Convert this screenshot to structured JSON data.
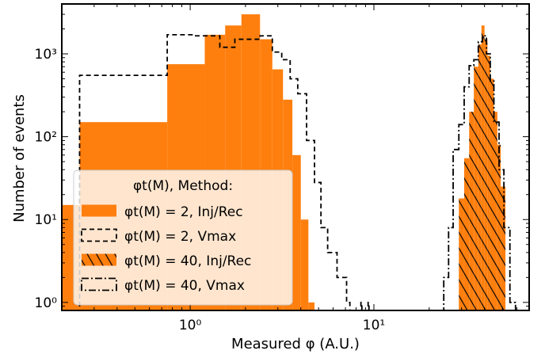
{
  "chart_data": {
    "type": "histogram",
    "xlabel": "Measured φ (A.U.)",
    "ylabel": "Number of events",
    "x_scale": "log",
    "y_scale": "log",
    "xlim": [
      0.2,
      70
    ],
    "ylim": [
      0.8,
      4000
    ],
    "x_ticks": [
      {
        "value": 1,
        "label": "10⁰"
      },
      {
        "value": 10,
        "label": "10¹"
      }
    ],
    "y_ticks": [
      {
        "value": 1,
        "label": "10⁰"
      },
      {
        "value": 10,
        "label": "10¹"
      },
      {
        "value": 100,
        "label": "10²"
      },
      {
        "value": 1000,
        "label": "10³"
      }
    ],
    "legend": {
      "title": "φt(M), Method:",
      "placement": "lower-left",
      "entries": [
        {
          "label": "φt(M) = 2, Inj/Rec",
          "style": "filled",
          "color": "#ff7f0e"
        },
        {
          "label": "φt(M) = 2, Vmax",
          "style": "dashed",
          "color": "#000000"
        },
        {
          "label": "φt(M) = 40, Inj/Rec",
          "style": "hatched",
          "color": "#ff7f0e"
        },
        {
          "label": "φt(M) = 40, Vmax",
          "style": "dashdot",
          "color": "#000000"
        }
      ]
    },
    "series": [
      {
        "label": "φt(M) = 2, Inj/Rec",
        "style": "filled",
        "bins": [
          [
            0.2,
            0.25,
            15
          ],
          [
            0.25,
            0.75,
            150
          ],
          [
            0.75,
            1.2,
            750
          ],
          [
            1.2,
            1.55,
            1700
          ],
          [
            1.55,
            1.9,
            2200
          ],
          [
            1.9,
            2.4,
            3000
          ],
          [
            2.4,
            2.8,
            1500
          ],
          [
            2.8,
            3.2,
            650
          ],
          [
            3.2,
            3.6,
            280
          ],
          [
            3.6,
            4.0,
            60
          ],
          [
            4.0,
            4.4,
            10
          ],
          [
            4.4,
            4.75,
            1
          ]
        ]
      },
      {
        "label": "φt(M) = 2, Vmax",
        "style": "dashed",
        "bins": [
          [
            0.25,
            0.75,
            550
          ],
          [
            0.75,
            1.05,
            1700
          ],
          [
            1.05,
            1.45,
            1650
          ],
          [
            1.45,
            1.75,
            1200
          ],
          [
            1.75,
            2.05,
            1500
          ],
          [
            2.05,
            2.4,
            1500
          ],
          [
            2.4,
            2.8,
            1650
          ],
          [
            2.8,
            3.15,
            1050
          ],
          [
            3.15,
            3.5,
            850
          ],
          [
            3.5,
            3.85,
            500
          ],
          [
            3.85,
            4.3,
            330
          ],
          [
            4.3,
            4.75,
            90
          ],
          [
            4.75,
            5.15,
            28
          ],
          [
            5.15,
            5.6,
            8
          ],
          [
            5.6,
            6.3,
            4
          ],
          [
            6.3,
            7.1,
            2
          ],
          [
            7.1,
            7.4,
            1
          ],
          [
            8.5,
            8.6,
            1
          ],
          [
            9.3,
            9.4,
            1
          ]
        ]
      },
      {
        "label": "φt(M) = 40, Inj/Rec",
        "style": "hatched",
        "bins": [
          [
            29,
            31,
            18
          ],
          [
            31,
            33,
            55
          ],
          [
            33,
            35,
            200
          ],
          [
            35,
            37,
            700
          ],
          [
            37,
            38.5,
            1300
          ],
          [
            38.5,
            40,
            2200
          ],
          [
            40,
            41.5,
            1500
          ],
          [
            41.5,
            43,
            950
          ],
          [
            43,
            45,
            500
          ],
          [
            45,
            47,
            200
          ],
          [
            47,
            49,
            80
          ],
          [
            49,
            52,
            25
          ]
        ]
      },
      {
        "label": "φt(M) = 40, Vmax",
        "style": "dashdot",
        "bins": [
          [
            24,
            25.5,
            2
          ],
          [
            25.5,
            27,
            8
          ],
          [
            27,
            29,
            70
          ],
          [
            29,
            31,
            140
          ],
          [
            31,
            33,
            400
          ],
          [
            33,
            35,
            720
          ],
          [
            35,
            37,
            850
          ],
          [
            37,
            39,
            1400
          ],
          [
            39,
            41,
            1650
          ],
          [
            41,
            43,
            1000
          ],
          [
            43,
            45,
            470
          ],
          [
            45,
            48,
            150
          ],
          [
            48,
            51,
            40
          ],
          [
            51,
            55,
            8
          ],
          [
            55,
            59,
            1
          ]
        ]
      }
    ]
  }
}
